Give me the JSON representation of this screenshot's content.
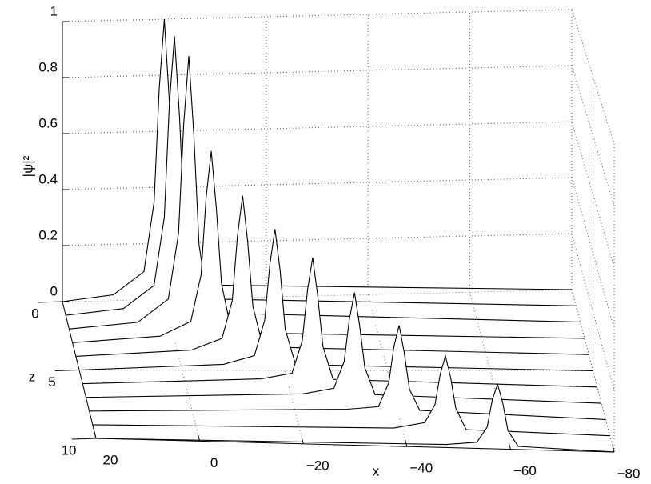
{
  "chart_data": {
    "type": "waterfall",
    "xlabel": "x",
    "ylabel": "|ψ|²",
    "zlabel": "z",
    "xlim": [
      20,
      -80
    ],
    "ylim": [
      0,
      1
    ],
    "zlim": [
      0,
      10
    ],
    "xticks": [
      20,
      0,
      {
        "value": -20,
        "label": "−20"
      },
      {
        "value": -40,
        "label": "−40"
      },
      {
        "value": -60,
        "label": "−60"
      },
      {
        "value": -80,
        "label": "−80"
      }
    ],
    "yticks": [
      0,
      0.2,
      0.4,
      0.6,
      0.8,
      1
    ],
    "zticks": [
      0,
      5,
      10
    ],
    "grid": true,
    "color": "#000000",
    "series": [
      {
        "z": 0,
        "x": [
          20,
          10,
          4,
          2,
          1,
          0,
          -1,
          -2,
          -4,
          -80
        ],
        "values": [
          0,
          0.02,
          0.1,
          0.35,
          0.75,
          1,
          0.7,
          0.3,
          0.05,
          0
        ]
      },
      {
        "z": 1,
        "x": [
          20,
          8.7,
          2.7,
          0.7,
          -0.3,
          -1.3,
          -2.3,
          -3.3,
          -5.3,
          -80
        ],
        "values": [
          0,
          0.02,
          0.1,
          0.34,
          0.74,
          0.98,
          0.69,
          0.29,
          0.05,
          0
        ]
      },
      {
        "z": 2,
        "x": [
          20,
          6.6,
          0.6,
          -1.4,
          -2.4,
          -3.4,
          -4.4,
          -5.4,
          -7.4,
          -80
        ],
        "values": [
          0,
          0.02,
          0.1,
          0.33,
          0.71,
          0.95,
          0.67,
          0.29,
          0.05,
          0
        ]
      },
      {
        "z": 3,
        "x": [
          20,
          2.9,
          -3.1,
          -5.1,
          -6.1,
          -7.1,
          -8.1,
          -9.1,
          -11.1,
          -80
        ],
        "values": [
          0,
          0.02,
          0.07,
          0.23,
          0.5,
          0.66,
          0.46,
          0.2,
          0.03,
          0
        ]
      },
      {
        "z": 4,
        "x": [
          20,
          -2.5,
          -8.5,
          -10.5,
          -11.5,
          -12.5,
          -13.5,
          -14.5,
          -16.5,
          -80
        ],
        "values": [
          0,
          0.02,
          0.06,
          0.19,
          0.41,
          0.55,
          0.39,
          0.17,
          0.03,
          0
        ]
      },
      {
        "z": 5,
        "x": [
          20,
          -8.1,
          -14.1,
          -16.1,
          -17.1,
          -18.1,
          -19.1,
          -20.1,
          -22.1,
          -80
        ],
        "values": [
          0,
          0.02,
          0.05,
          0.17,
          0.36,
          0.48,
          0.34,
          0.14,
          0.02,
          0
        ]
      },
      {
        "z": 6,
        "x": [
          20,
          -14.7,
          -20.7,
          -22.7,
          -23.7,
          -24.7,
          -25.7,
          -26.7,
          -28.7,
          -80
        ],
        "values": [
          0,
          0.02,
          0.04,
          0.15,
          0.32,
          0.43,
          0.3,
          0.13,
          0.02,
          0
        ]
      },
      {
        "z": 7,
        "x": [
          20,
          -22.1,
          -28.1,
          -30.1,
          -31.1,
          -32.1,
          -33.1,
          -34.1,
          -36.1,
          -80
        ],
        "values": [
          0,
          0.02,
          0.04,
          0.13,
          0.27,
          0.36,
          0.25,
          0.11,
          0.02,
          0
        ]
      },
      {
        "z": 8,
        "x": [
          20,
          -30,
          -36,
          -38,
          -39,
          -40,
          -41,
          -42,
          -44,
          -80
        ],
        "values": [
          0,
          0.02,
          0.03,
          0.11,
          0.23,
          0.3,
          0.21,
          0.09,
          0.02,
          0
        ]
      },
      {
        "z": 9,
        "x": [
          20,
          -38.2,
          -44.2,
          -46.2,
          -47.2,
          -48.2,
          -49.2,
          -50.2,
          -52.2,
          -80
        ],
        "values": [
          0,
          0.01,
          0.03,
          0.09,
          0.19,
          0.25,
          0.18,
          0.08,
          0.01,
          0
        ]
      },
      {
        "z": 10,
        "x": [
          20,
          -47.5,
          -53.5,
          -55.5,
          -56.5,
          -57.5,
          -58.5,
          -59.5,
          -61.5,
          -80
        ],
        "values": [
          0,
          0.01,
          0.02,
          0.07,
          0.16,
          0.21,
          0.15,
          0.06,
          0.01,
          0
        ]
      }
    ]
  }
}
